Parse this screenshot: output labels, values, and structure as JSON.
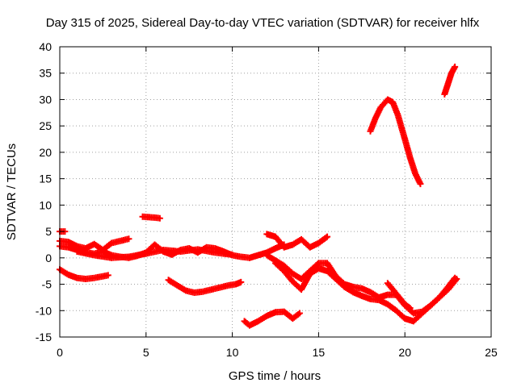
{
  "chart_data": {
    "type": "scatter",
    "title": "Day 315 of 2025, Sidereal Day-to-day VTEC variation (SDTVAR) for receiver hlfx",
    "xlabel": "GPS time / hours",
    "ylabel": "SDTVAR / TECUs",
    "xlim": [
      0,
      25
    ],
    "ylim": [
      -15,
      40
    ],
    "xticks": [
      "0",
      "5",
      "10",
      "15",
      "20",
      "25"
    ],
    "yticks": [
      "-15",
      "-10",
      "-5",
      "0",
      "5",
      "10",
      "15",
      "20",
      "25",
      "30",
      "35",
      "40"
    ],
    "grid": true,
    "marker": "plus",
    "colors": {
      "series": "#ff0000",
      "grid": "#a0a0a0",
      "axis": "#000000"
    },
    "series": [
      {
        "x": [
          0.0,
          0.3
        ],
        "y": [
          5.0,
          5.0
        ]
      },
      {
        "x": [
          0.0,
          0.5,
          1.0,
          1.5,
          2.0,
          2.5,
          3.0,
          3.5,
          4.0
        ],
        "y": [
          3.2,
          3.0,
          2.2,
          1.8,
          2.6,
          1.5,
          2.8,
          3.2,
          3.6
        ]
      },
      {
        "x": [
          0.0,
          0.5,
          1.0,
          1.5,
          2.0,
          2.5,
          3.0,
          3.5,
          4.0,
          4.5,
          5.0,
          5.5,
          6.0,
          6.5,
          7.0,
          7.5,
          8.0,
          8.5,
          9.0,
          9.5,
          10.0,
          10.5,
          11.0,
          11.5,
          12.0,
          12.5,
          13.0
        ],
        "y": [
          2.2,
          2.0,
          1.5,
          1.0,
          0.8,
          1.2,
          0.5,
          0.2,
          0.0,
          0.4,
          1.0,
          2.5,
          1.2,
          0.6,
          1.5,
          1.8,
          1.0,
          2.0,
          1.8,
          1.2,
          0.5,
          0.2,
          0.0,
          0.5,
          1.0,
          1.8,
          2.5
        ]
      },
      {
        "x": [
          1.0,
          2.0,
          3.0,
          4.0,
          5.0,
          6.0,
          7.0,
          8.0,
          9.0,
          10.0
        ],
        "y": [
          1.2,
          0.5,
          0.0,
          0.2,
          0.8,
          1.5,
          1.2,
          1.6,
          1.0,
          0.6
        ]
      },
      {
        "x": [
          0.0,
          0.5,
          1.0,
          1.5,
          2.0,
          2.5,
          2.8
        ],
        "y": [
          -2.2,
          -3.2,
          -3.8,
          -4.0,
          -3.8,
          -3.5,
          -3.3
        ]
      },
      {
        "x": [
          4.8,
          5.2,
          5.6,
          5.8
        ],
        "y": [
          7.8,
          7.7,
          7.6,
          7.5
        ]
      },
      {
        "x": [
          6.3,
          6.8,
          7.3,
          7.8,
          8.3,
          8.8,
          9.3,
          9.8,
          10.2,
          10.5
        ],
        "y": [
          -4.2,
          -5.2,
          -6.2,
          -6.6,
          -6.4,
          -6.0,
          -5.6,
          -5.2,
          -5.0,
          -4.6
        ]
      },
      {
        "x": [
          12.0,
          12.5,
          13.0,
          13.5,
          14.0,
          14.5,
          15.0,
          15.5,
          16.0,
          16.5,
          17.0,
          17.5,
          18.0,
          18.5,
          19.0,
          19.5,
          20.0,
          20.5,
          21.0,
          21.5,
          22.0,
          22.5,
          22.9
        ],
        "y": [
          0.5,
          -0.5,
          -1.5,
          -3.0,
          -4.0,
          -2.5,
          -1.0,
          -1.0,
          -3.5,
          -5.0,
          -5.5,
          -5.8,
          -6.5,
          -7.5,
          -7.0,
          -7.0,
          -9.0,
          -10.5,
          -10.2,
          -9.0,
          -7.5,
          -5.5,
          -3.8
        ]
      },
      {
        "x": [
          12.5,
          13.0,
          13.5,
          14.0,
          14.5,
          15.0,
          15.5,
          16.0,
          16.5,
          17.0,
          17.5,
          18.0,
          18.5,
          19.0,
          19.5,
          20.0,
          20.5,
          21.0,
          21.5,
          22.0,
          22.5,
          23.0
        ],
        "y": [
          -1.0,
          -2.5,
          -4.5,
          -6.0,
          -3.0,
          -2.0,
          -2.5,
          -4.0,
          -5.5,
          -6.5,
          -7.2,
          -7.8,
          -8.0,
          -8.8,
          -10.0,
          -11.5,
          -12.0,
          -10.5,
          -9.0,
          -7.5,
          -6.0,
          -4.0
        ]
      },
      {
        "x": [
          19.0,
          19.5,
          20.0,
          20.3
        ],
        "y": [
          -4.8,
          -6.8,
          -8.8,
          -9.5
        ]
      },
      {
        "x": [
          12.0,
          12.5,
          13.0,
          13.5,
          14.0,
          14.5,
          15.0,
          15.5
        ],
        "y": [
          4.5,
          4.0,
          2.0,
          2.5,
          3.5,
          2.0,
          2.8,
          4.0
        ]
      },
      {
        "x": [
          10.7,
          11.0,
          11.5,
          12.0,
          12.5,
          13.0,
          13.5,
          13.9
        ],
        "y": [
          -12.0,
          -12.8,
          -12.0,
          -11.0,
          -10.3,
          -10.2,
          -11.5,
          -10.5
        ]
      },
      {
        "x": [
          18.0,
          18.3,
          18.6,
          19.0,
          19.3,
          19.6,
          20.0,
          20.3,
          20.6,
          20.9
        ],
        "y": [
          24.0,
          26.5,
          28.5,
          30.0,
          29.5,
          27.0,
          22.5,
          19.0,
          16.0,
          14.0
        ]
      },
      {
        "x": [
          22.3,
          22.5,
          22.7,
          22.9
        ],
        "y": [
          31.0,
          33.0,
          35.0,
          36.2
        ]
      }
    ]
  }
}
